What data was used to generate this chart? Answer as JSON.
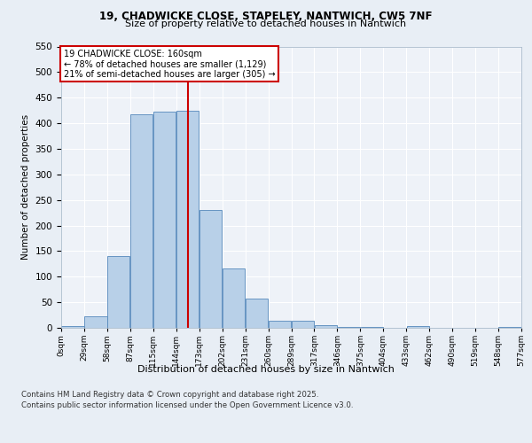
{
  "title1": "19, CHADWICKE CLOSE, STAPELEY, NANTWICH, CW5 7NF",
  "title2": "Size of property relative to detached houses in Nantwich",
  "xlabel": "Distribution of detached houses by size in Nantwich",
  "ylabel": "Number of detached properties",
  "bin_labels": [
    "0sqm",
    "29sqm",
    "58sqm",
    "87sqm",
    "115sqm",
    "144sqm",
    "173sqm",
    "202sqm",
    "231sqm",
    "260sqm",
    "289sqm",
    "317sqm",
    "346sqm",
    "375sqm",
    "404sqm",
    "433sqm",
    "462sqm",
    "490sqm",
    "519sqm",
    "548sqm",
    "577sqm"
  ],
  "bar_values": [
    3,
    22,
    141,
    418,
    422,
    425,
    230,
    116,
    58,
    13,
    14,
    6,
    1,
    2,
    0,
    4,
    0,
    0,
    0,
    2
  ],
  "bar_color": "#b8d0e8",
  "bar_edge_color": "#5588bb",
  "vline_x": 160,
  "vline_color": "#cc0000",
  "annotation_title": "19 CHADWICKE CLOSE: 160sqm",
  "annotation_line1": "← 78% of detached houses are smaller (1,129)",
  "annotation_line2": "21% of semi-detached houses are larger (305) →",
  "annotation_box_color": "#ffffff",
  "annotation_border_color": "#cc0000",
  "ylim": [
    0,
    550
  ],
  "yticks": [
    0,
    50,
    100,
    150,
    200,
    250,
    300,
    350,
    400,
    450,
    500,
    550
  ],
  "bg_color": "#e8eef5",
  "plot_bg_color": "#eef2f8",
  "footer1": "Contains HM Land Registry data © Crown copyright and database right 2025.",
  "footer2": "Contains public sector information licensed under the Open Government Licence v3.0.",
  "bin_width": 29,
  "n_bins": 20
}
